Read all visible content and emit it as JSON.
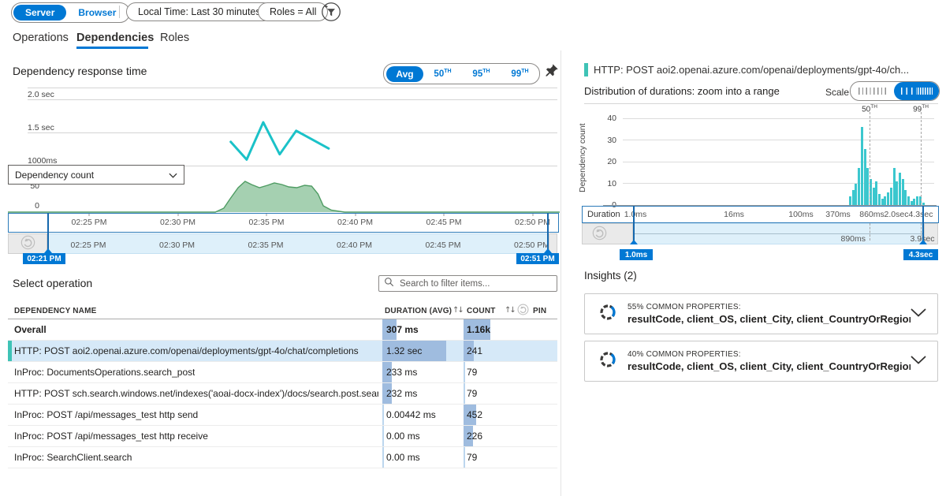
{
  "toolbar": {
    "server": "Server",
    "browser": "Browser",
    "time_filter": "Local Time: Last 30 minutes",
    "roles_filter": "Roles = All"
  },
  "icons": {
    "filter": "funnel-plus-circle",
    "pin": "pushpin",
    "undo": "reset-zoom-circular-arrow",
    "search": "magnifier",
    "chevron": "chevron-down",
    "sort": "up-down-arrows",
    "insight": "segmented-donut-ring"
  },
  "tabs": {
    "operations": "Operations",
    "dependencies": "Dependencies",
    "roles": "Roles"
  },
  "response_chart": {
    "title": "Dependency response time",
    "aggregations": [
      {
        "label": "Avg",
        "suffix": ""
      },
      {
        "label": "50",
        "suffix": "TH"
      },
      {
        "label": "95",
        "suffix": "TH"
      },
      {
        "label": "99",
        "suffix": "TH"
      }
    ],
    "selected_aggregation": "Avg",
    "y_gridlines": [
      "2.0 sec",
      "1.5 sec",
      "1000ms"
    ],
    "line_color": "#1BC2C8",
    "series": {
      "unit": "sec",
      "points": [
        {
          "t": 0.401,
          "value": 1.35
        },
        {
          "t": 0.431,
          "value": 1.08
        },
        {
          "t": 0.462,
          "value": 1.65
        },
        {
          "t": 0.493,
          "value": 1.16
        },
        {
          "t": 0.524,
          "value": 1.52
        },
        {
          "t": 0.585,
          "value": 1.25
        }
      ]
    }
  },
  "count_chart": {
    "metric_selector": "Dependency count",
    "y_ticks": [
      "50",
      "0"
    ],
    "fill": "#8FC49E",
    "stroke": "#4F9C63",
    "area": {
      "points": [
        {
          "t": 0.372,
          "value": 0
        },
        {
          "t": 0.388,
          "value": 10
        },
        {
          "t": 0.4,
          "value": 34
        },
        {
          "t": 0.415,
          "value": 62
        },
        {
          "t": 0.428,
          "value": 78
        },
        {
          "t": 0.44,
          "value": 70
        },
        {
          "t": 0.455,
          "value": 62
        },
        {
          "t": 0.47,
          "value": 68
        },
        {
          "t": 0.483,
          "value": 74
        },
        {
          "t": 0.497,
          "value": 70
        },
        {
          "t": 0.51,
          "value": 64
        },
        {
          "t": 0.525,
          "value": 62
        },
        {
          "t": 0.54,
          "value": 68
        },
        {
          "t": 0.553,
          "value": 66
        },
        {
          "t": 0.565,
          "value": 46
        },
        {
          "t": 0.575,
          "value": 16
        },
        {
          "t": 0.59,
          "value": 5
        },
        {
          "t": 0.615,
          "value": 0
        }
      ]
    }
  },
  "time_axis": {
    "labels": [
      "02:25 PM",
      "02:30 PM",
      "02:35 PM",
      "02:40 PM",
      "02:45 PM",
      "02:50 PM"
    ],
    "range_start": "02:21 PM",
    "range_end": "02:51 PM"
  },
  "operations": {
    "title": "Select operation",
    "search_placeholder": "Search to filter items...",
    "columns": {
      "name": "DEPENDENCY NAME",
      "duration": "DURATION (AVG)",
      "count": "COUNT",
      "pin": "PIN"
    },
    "rows": [
      {
        "name": "Overall",
        "duration": "307 ms",
        "count": "1.16k",
        "duration_bar": 18,
        "count_bar": 34,
        "emphasis": true,
        "selected": false
      },
      {
        "name": "HTTP: POST aoi2.openai.azure.com/openai/deployments/gpt-4o/chat/completions",
        "duration": "1.32 sec",
        "count": "241",
        "duration_bar": 81,
        "count_bar": 13,
        "emphasis": false,
        "selected": true
      },
      {
        "name": "InProc: DocumentsOperations.search_post",
        "duration": "233 ms",
        "count": "79",
        "duration_bar": 12,
        "count_bar": 0,
        "emphasis": false,
        "selected": false
      },
      {
        "name": "HTTP: POST sch.search.windows.net/indexes('aoai-docx-index')/docs/search.post.search",
        "duration": "232 ms",
        "count": "79",
        "duration_bar": 12,
        "count_bar": 0,
        "emphasis": false,
        "selected": false
      },
      {
        "name": "InProc: POST /api/messages_test http send",
        "duration": "0.00442 ms",
        "count": "452",
        "duration_bar": 0,
        "count_bar": 16,
        "emphasis": false,
        "selected": false
      },
      {
        "name": "InProc: POST /api/messages_test http receive",
        "duration": "0.00 ms",
        "count": "226",
        "duration_bar": 0,
        "count_bar": 12,
        "emphasis": false,
        "selected": false
      },
      {
        "name": "InProc: SearchClient.search",
        "duration": "0.00 ms",
        "count": "79",
        "duration_bar": 0,
        "count_bar": 0,
        "emphasis": false,
        "selected": false
      }
    ]
  },
  "detail": {
    "title": "HTTP: POST aoi2.openai.azure.com/openai/deployments/gpt-4o/ch...",
    "distribution_title": "Distribution of durations: zoom into a range",
    "scale_label": "Scale",
    "histogram": {
      "ylabel": "Dependency count",
      "y_ticks": [
        "40",
        "30",
        "20",
        "10",
        "0"
      ],
      "ymax": 40,
      "xlabel": "Duration",
      "x_ticks": [
        "1.0ms",
        "16ms",
        "100ms",
        "370ms",
        "860ms",
        "2.0sec",
        "4.3sec"
      ],
      "bar_color": "#3BC7CE",
      "bars": [
        4,
        7,
        10,
        17,
        36,
        26,
        17,
        12,
        8,
        11,
        5,
        3,
        4,
        6,
        8,
        17,
        11,
        15,
        12,
        7,
        4,
        2,
        3,
        4,
        4,
        1
      ],
      "percentiles": [
        {
          "label": "50",
          "suffix": "TH",
          "value": "890ms"
        },
        {
          "label": "99",
          "suffix": "TH",
          "value": "3.9sec"
        }
      ]
    },
    "range_start": "1.0ms",
    "range_end": "4.3sec",
    "insights": {
      "title": "Insights (2)",
      "cards": [
        {
          "headline": "55% COMMON PROPERTIES:",
          "properties": "resultCode, client_OS, client_City, client_CountryOrRegion, client_St..."
        },
        {
          "headline": "40% COMMON PROPERTIES:",
          "properties": "resultCode, client_OS, client_City, client_CountryOrRegion, client_St..."
        }
      ]
    }
  }
}
